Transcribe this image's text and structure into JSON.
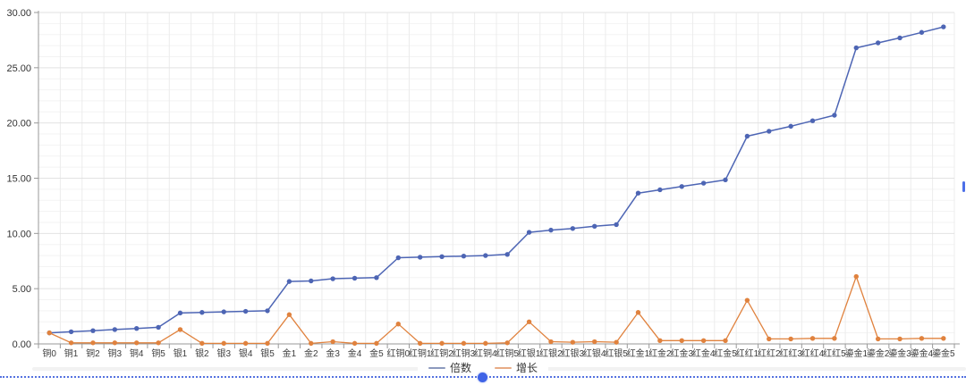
{
  "chart_data": {
    "type": "line",
    "title": "",
    "xlabel": "",
    "ylabel": "",
    "ylim": [
      0,
      30
    ],
    "y_major_step": 5,
    "y_minor_step": 1,
    "grid": true,
    "legend_position": "bottom",
    "y_tick_labels": [
      "0.00",
      "5.00",
      "10.00",
      "15.00",
      "20.00",
      "25.00",
      "30.00"
    ],
    "categories": [
      "铜0",
      "铜1",
      "铜2",
      "铜3",
      "铜4",
      "铜5",
      "银1",
      "银2",
      "银3",
      "银4",
      "银5",
      "金1",
      "金2",
      "金3",
      "金4",
      "金5",
      "红铜0",
      "红铜1",
      "红铜2",
      "红铜3",
      "红铜4",
      "红铜5",
      "红银1",
      "红银2",
      "红银3",
      "红银4",
      "红银5",
      "红金1",
      "红金2",
      "红金3",
      "红金4",
      "红金5",
      "红红1",
      "红红2",
      "红红3",
      "红红4",
      "红红5",
      "鎏金1",
      "鎏金2",
      "鎏金3",
      "鎏金4",
      "鎏金5"
    ],
    "series": [
      {
        "name": "倍数",
        "color": "#4d65b4",
        "legend_color": "#8c99bd",
        "values": [
          1.0,
          1.1,
          1.2,
          1.3,
          1.4,
          1.5,
          2.8,
          2.85,
          2.9,
          2.95,
          3.0,
          5.65,
          5.7,
          5.9,
          5.95,
          6.0,
          7.8,
          7.85,
          7.9,
          7.95,
          8.0,
          8.1,
          10.1,
          10.3,
          10.45,
          10.65,
          10.8,
          13.65,
          13.95,
          14.25,
          14.55,
          14.85,
          18.8,
          19.25,
          19.7,
          20.2,
          20.7,
          26.8,
          27.25,
          27.7,
          28.2,
          28.7
        ]
      },
      {
        "name": "增长",
        "color": "#e0823e",
        "legend_color": "#e8ab85",
        "values": [
          1.0,
          0.1,
          0.1,
          0.1,
          0.1,
          0.1,
          1.3,
          0.05,
          0.05,
          0.05,
          0.05,
          2.65,
          0.05,
          0.2,
          0.05,
          0.05,
          1.8,
          0.05,
          0.05,
          0.05,
          0.05,
          0.1,
          2.0,
          0.2,
          0.15,
          0.2,
          0.15,
          2.85,
          0.3,
          0.3,
          0.3,
          0.3,
          3.95,
          0.45,
          0.45,
          0.5,
          0.5,
          6.1,
          0.45,
          0.45,
          0.5,
          0.5
        ]
      }
    ],
    "axis_color": "#999999",
    "major_grid_color": "#e2e2e2",
    "minor_grid_color": "#f3f3f3",
    "vertical_grid_color": "#ececec"
  },
  "scrollbar": {
    "slider_color": "#3f63e6"
  }
}
